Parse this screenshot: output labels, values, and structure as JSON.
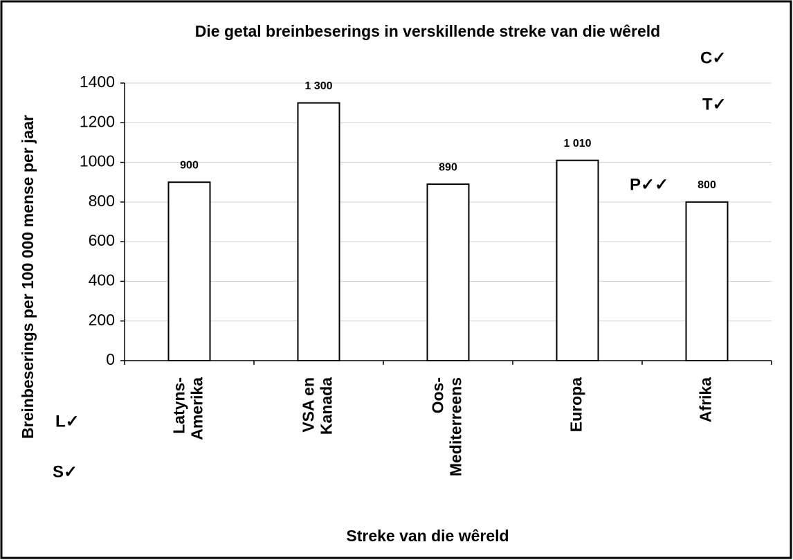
{
  "chart_data": {
    "type": "bar",
    "title": "Die getal breinbeserings in verskillende streke van die wêreld",
    "x_label": "Streke van die wêreld",
    "y_label": "Breinbeserings per 100 000 mense per jaar",
    "categories": [
      [
        "Latyns-",
        "Amerika"
      ],
      [
        "VSA en",
        "Kanada"
      ],
      [
        "Oos-",
        "Mediterreens"
      ],
      [
        "Europa"
      ],
      [
        "Afrika"
      ]
    ],
    "values": [
      900,
      1300,
      890,
      1010,
      800
    ],
    "value_labels": [
      "900",
      "1 300",
      "890",
      "1 010",
      "800"
    ],
    "color": "#ffffff",
    "ylim": [
      0,
      1400
    ],
    "yticks": [
      0,
      200,
      400,
      600,
      800,
      1000,
      1200,
      1400
    ],
    "grid": true,
    "annotations": [
      "C✓",
      "T✓",
      "P✓✓",
      "L✓",
      "S✓"
    ]
  }
}
